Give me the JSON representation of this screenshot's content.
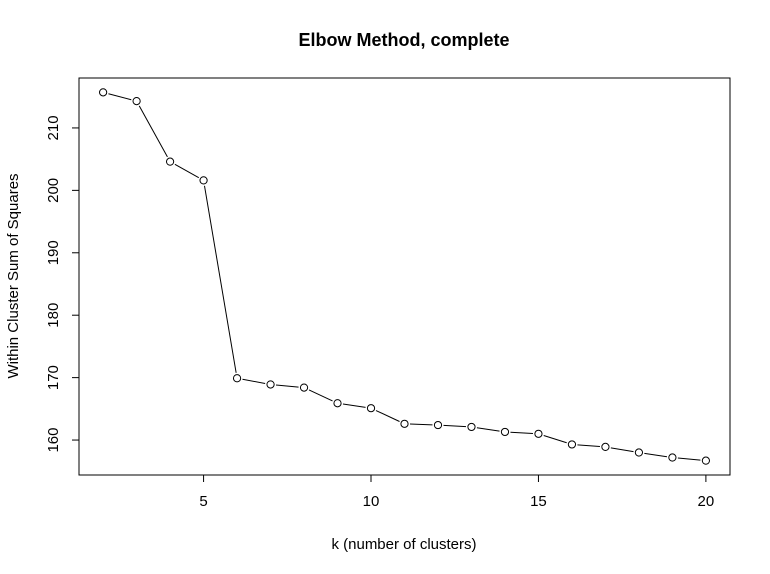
{
  "chart_data": {
    "type": "line",
    "title": "Elbow Method, complete",
    "xlabel": "k (number of clusters)",
    "ylabel": "Within Cluster Sum of Squares",
    "x": [
      2,
      3,
      4,
      5,
      6,
      7,
      8,
      9,
      10,
      11,
      12,
      13,
      14,
      15,
      16,
      17,
      18,
      19,
      20
    ],
    "y": [
      215.7,
      214.3,
      204.6,
      201.6,
      169.9,
      168.9,
      168.4,
      165.9,
      165.1,
      162.6,
      162.4,
      162.1,
      161.3,
      161.0,
      159.3,
      158.9,
      158.0,
      157.2,
      156.7
    ],
    "xlim": [
      1.28,
      20.72
    ],
    "ylim": [
      154.4,
      218.0
    ],
    "xticks": [
      5,
      10,
      15,
      20
    ],
    "yticks": [
      160,
      170,
      180,
      190,
      200,
      210
    ],
    "marker": "open-circle",
    "line_color": "#000000",
    "grid": false,
    "legend": "none"
  }
}
